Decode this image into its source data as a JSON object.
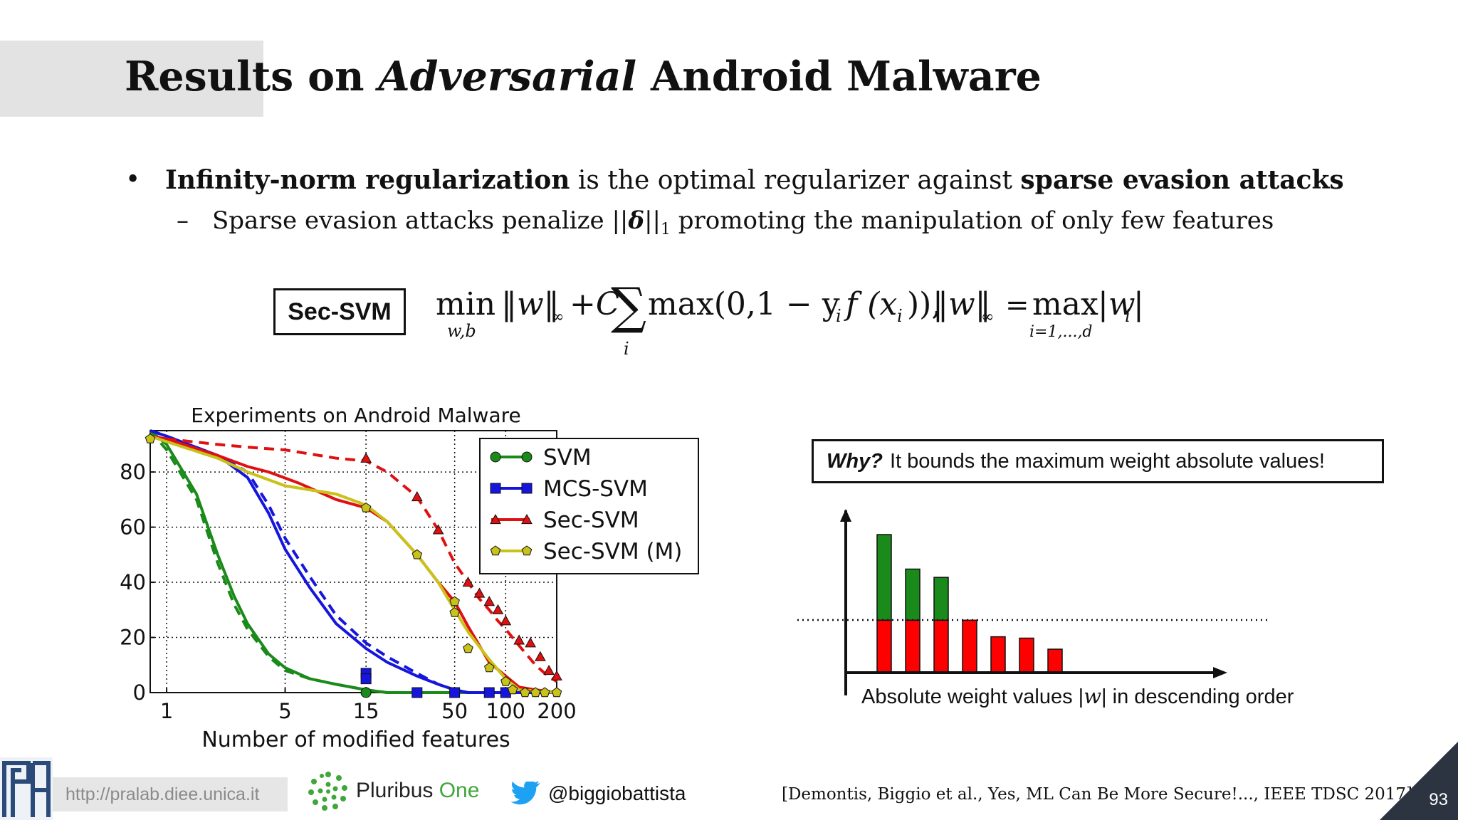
{
  "slide": {
    "title_pre": "Results on ",
    "title_italic": "Adversarial",
    "title_post": " Android Malware",
    "page_number": "93"
  },
  "bullets": {
    "bullet_symbol": "•",
    "b1_bold1": "Infinity-norm regularization",
    "b1_mid": " is the optimal regularizer against ",
    "b1_bold2": "sparse evasion attacks",
    "dash_symbol": "–",
    "b2_pre": "Sparse evasion attacks penalize ||",
    "b2_delta": "δ",
    "b2_norm": "||",
    "b2_sub": "1",
    "b2_post": " promoting the manipulation of only few features"
  },
  "formula": {
    "label": "Sec-SVM",
    "min": "min",
    "min_sub": "w,b",
    "norm_w": "‖w‖",
    "inf": "∞",
    "plus_c": "+C",
    "sum": "∑",
    "sum_sub": "i",
    "hinge": "max(0,1 − y",
    "hinge_i": "i",
    "hinge_f": "f (x",
    "hinge_end": ")),",
    "norm_w2": "‖w‖",
    "inf2": "∞",
    "eq": "=",
    "max": "max",
    "max_sub": "i=1,...,d",
    "abs_w": "|w",
    "abs_sub": "i",
    "abs_end": "|"
  },
  "chart_data": {
    "type": "line",
    "title": "Experiments on Android Malware",
    "xlabel": "Number of modified features",
    "ylabel": "",
    "xscale": "log",
    "xlim": [
      0.8,
      200
    ],
    "ylim": [
      0,
      95
    ],
    "x_ticks": [
      1,
      5,
      15,
      50,
      100,
      200
    ],
    "x_tick_labels": [
      "1",
      "5",
      "15",
      "50",
      "100",
      "200"
    ],
    "y_ticks": [
      0,
      20,
      40,
      60,
      80
    ],
    "y_tick_labels": [
      "0",
      "20",
      "40",
      "60",
      "80"
    ],
    "grid": true,
    "legend_position": "top-right",
    "series": [
      {
        "name": "SVM",
        "color": "#1a8a1a",
        "marker": "circle",
        "solid": [
          [
            0.8,
            95
          ],
          [
            1,
            90
          ],
          [
            1.5,
            72
          ],
          [
            2,
            50
          ],
          [
            2.5,
            35
          ],
          [
            3,
            25
          ],
          [
            4,
            14
          ],
          [
            5,
            9
          ],
          [
            7,
            5
          ],
          [
            10,
            3
          ],
          [
            15,
            1
          ],
          [
            20,
            0
          ],
          [
            200,
            0
          ]
        ],
        "dashed": [
          [
            0.8,
            95
          ],
          [
            1,
            88
          ],
          [
            1.5,
            70
          ],
          [
            2,
            47
          ],
          [
            2.5,
            32
          ],
          [
            3,
            23
          ],
          [
            4,
            13
          ],
          [
            5,
            8
          ],
          [
            7,
            5
          ],
          [
            10,
            3
          ],
          [
            15,
            1
          ],
          [
            20,
            0
          ],
          [
            200,
            0
          ]
        ],
        "markers": [
          [
            15,
            0
          ]
        ]
      },
      {
        "name": "MCS-SVM",
        "color": "#1515dd",
        "marker": "square",
        "solid": [
          [
            0.8,
            95
          ],
          [
            1,
            93
          ],
          [
            2,
            86
          ],
          [
            3,
            78
          ],
          [
            4,
            65
          ],
          [
            5,
            52
          ],
          [
            7,
            38
          ],
          [
            10,
            25
          ],
          [
            15,
            16
          ],
          [
            20,
            11
          ],
          [
            30,
            6
          ],
          [
            40,
            3
          ],
          [
            50,
            1
          ],
          [
            60,
            0
          ],
          [
            200,
            0
          ]
        ],
        "dashed": [
          [
            0.8,
            95
          ],
          [
            1,
            93
          ],
          [
            2,
            86
          ],
          [
            3,
            80
          ],
          [
            4,
            68
          ],
          [
            5,
            56
          ],
          [
            7,
            42
          ],
          [
            10,
            28
          ],
          [
            15,
            18
          ],
          [
            20,
            13
          ],
          [
            30,
            7
          ],
          [
            40,
            3
          ],
          [
            50,
            1
          ],
          [
            60,
            0
          ],
          [
            200,
            0
          ]
        ],
        "markers": [
          [
            15,
            7
          ],
          [
            15,
            5
          ],
          [
            30,
            0
          ],
          [
            50,
            0
          ],
          [
            80,
            0
          ],
          [
            100,
            0
          ]
        ]
      },
      {
        "name": "Sec-SVM",
        "color": "#e01010",
        "marker": "triangle",
        "solid": [
          [
            0.8,
            93
          ],
          [
            1,
            92
          ],
          [
            2,
            86
          ],
          [
            3,
            82
          ],
          [
            4,
            80
          ],
          [
            6,
            76
          ],
          [
            10,
            70
          ],
          [
            15,
            67
          ],
          [
            20,
            62
          ],
          [
            30,
            50
          ],
          [
            40,
            40
          ],
          [
            50,
            33
          ],
          [
            60,
            24
          ],
          [
            80,
            11
          ],
          [
            100,
            6
          ],
          [
            120,
            2
          ],
          [
            150,
            1
          ],
          [
            200,
            0
          ]
        ],
        "dashed": [
          [
            0.8,
            93
          ],
          [
            1,
            92
          ],
          [
            2,
            90
          ],
          [
            3,
            89
          ],
          [
            5,
            88
          ],
          [
            10,
            85
          ],
          [
            15,
            84
          ],
          [
            20,
            80
          ],
          [
            30,
            71
          ],
          [
            40,
            59
          ],
          [
            50,
            47
          ],
          [
            60,
            40
          ],
          [
            70,
            34
          ],
          [
            80,
            30
          ],
          [
            90,
            26
          ],
          [
            100,
            23
          ],
          [
            120,
            17
          ],
          [
            150,
            10
          ],
          [
            170,
            7
          ],
          [
            200,
            4
          ]
        ],
        "markers": [
          [
            15,
            85
          ],
          [
            30,
            71
          ],
          [
            40,
            59
          ],
          [
            60,
            40
          ],
          [
            70,
            36
          ],
          [
            80,
            33
          ],
          [
            90,
            30
          ],
          [
            100,
            26
          ],
          [
            120,
            19
          ],
          [
            140,
            18
          ],
          [
            160,
            13
          ],
          [
            180,
            8
          ],
          [
            200,
            6
          ]
        ]
      },
      {
        "name": "Sec-SVM (M)",
        "color": "#c9c21a",
        "marker": "pentagon",
        "solid": [
          [
            0.8,
            93
          ],
          [
            1,
            91
          ],
          [
            2,
            85
          ],
          [
            3,
            80
          ],
          [
            5,
            75
          ],
          [
            10,
            72
          ],
          [
            15,
            68
          ],
          [
            20,
            62
          ],
          [
            30,
            50
          ],
          [
            40,
            40
          ],
          [
            50,
            30
          ],
          [
            60,
            22
          ],
          [
            80,
            12
          ],
          [
            100,
            5
          ],
          [
            120,
            1
          ],
          [
            200,
            0
          ]
        ],
        "dashed": [
          [
            0.8,
            93
          ],
          [
            1,
            91
          ],
          [
            2,
            85
          ],
          [
            3,
            80
          ],
          [
            5,
            75
          ],
          [
            10,
            72
          ],
          [
            15,
            68
          ],
          [
            20,
            62
          ],
          [
            30,
            50
          ],
          [
            40,
            40
          ],
          [
            50,
            30
          ],
          [
            60,
            22
          ],
          [
            80,
            12
          ],
          [
            100,
            5
          ],
          [
            120,
            1
          ],
          [
            200,
            0
          ]
        ],
        "markers": [
          [
            0.8,
            92
          ],
          [
            15,
            67
          ],
          [
            30,
            50
          ],
          [
            50,
            33
          ],
          [
            50,
            29
          ],
          [
            60,
            16
          ],
          [
            80,
            9
          ],
          [
            100,
            4
          ],
          [
            110,
            1
          ],
          [
            130,
            0
          ],
          [
            150,
            0
          ],
          [
            170,
            0
          ],
          [
            200,
            0
          ]
        ]
      }
    ]
  },
  "why_box": {
    "why": "Why?",
    "text": "It bounds the maximum weight absolute values!"
  },
  "bars_figure": {
    "caption_pre": "Absolute weight values |",
    "caption_w": "w",
    "caption_post": "| in descending order",
    "values": [
      1.0,
      0.75,
      0.69,
      0.38,
      0.26,
      0.25,
      0.17
    ],
    "threshold": 0.38,
    "above_color": "#1a8a1a",
    "below_color": "#ff0000"
  },
  "footer": {
    "url": "http://pralab.diee.unica.it",
    "pluribus_a": "Pluribus ",
    "pluribus_b": "One",
    "twitter_handle": "@biggiobattista",
    "citation": "[Demontis, Biggio et al., Yes, ML Can Be More Secure!..., IEEE TDSC 2017]"
  }
}
